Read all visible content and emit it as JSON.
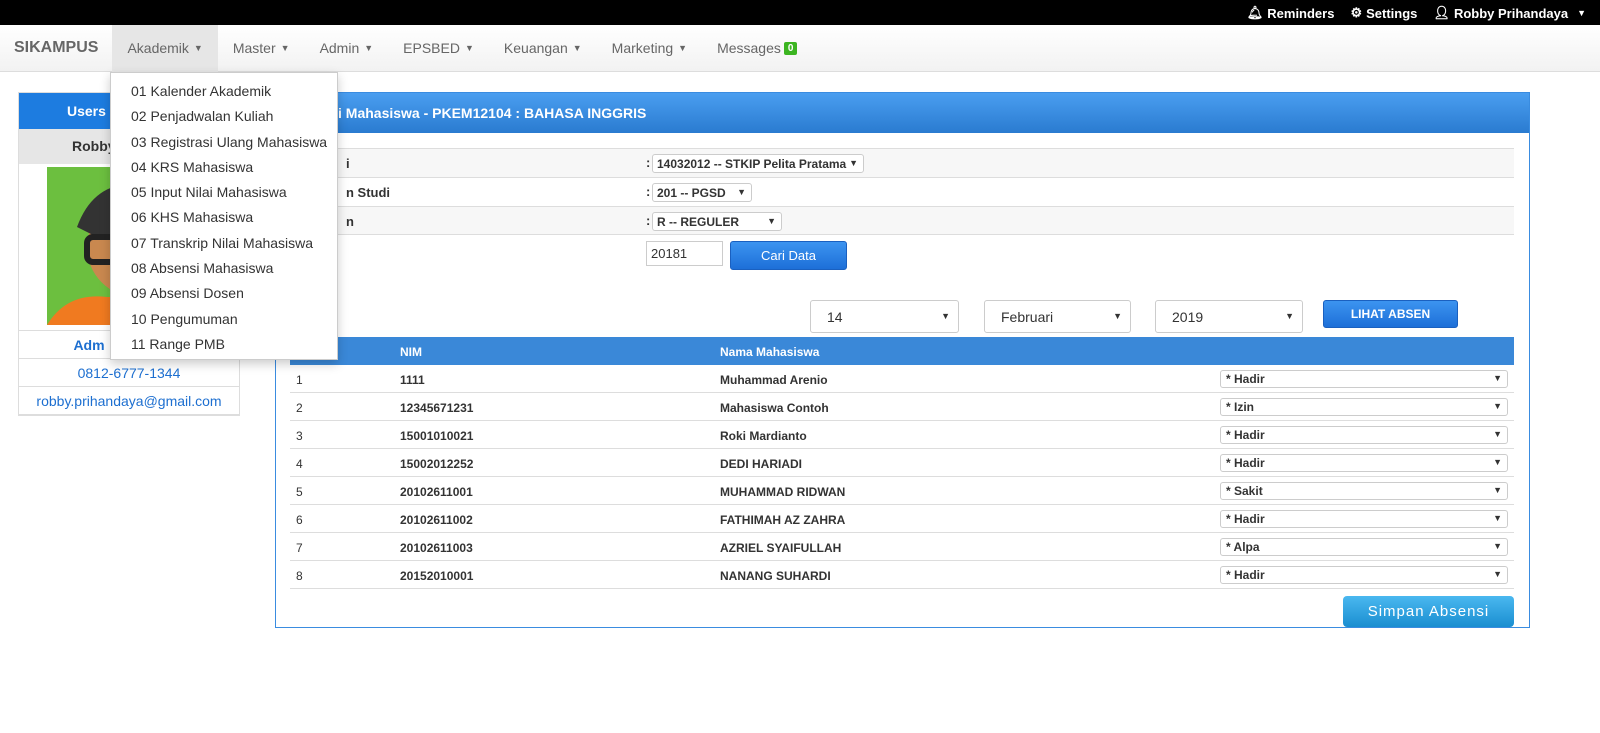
{
  "topbar": {
    "reminders": "Reminders",
    "settings": "Settings",
    "user": "Robby Prihandaya"
  },
  "nav": {
    "brand": "SIKAMPUS",
    "items": [
      "Akademik",
      "Master",
      "Admin",
      "EPSBED",
      "Keuangan",
      "Marketing"
    ],
    "messages": "Messages",
    "messages_count": "0"
  },
  "akademik_menu": [
    "01 Kalender Akademik",
    "02 Penjadwalan Kuliah",
    "03 Registrasi Ulang Mahasiswa",
    "04 KRS Mahasiswa",
    "05 Input Nilai Mahasiswa",
    "06 KHS Mahasiswa",
    "07 Transkrip Nilai Mahasiswa",
    "08 Absensi Mahasiswa",
    "09 Absensi Dosen",
    "10 Pengumuman",
    "11 Range PMB"
  ],
  "sidebar": {
    "header": "Users L",
    "name": "Robby",
    "role": "Adm",
    "phone": "0812-6777-1344",
    "email": "robby.prihandaya@gmail.com"
  },
  "main": {
    "title": "i Mahasiswa - PKEM12104 : BAHASA INGGRIS",
    "form": [
      {
        "label": "i",
        "value": "14032012 -- STKIP Pelita Pratama"
      },
      {
        "label": "n Studi",
        "value": "201 -- PGSD"
      },
      {
        "label": "n",
        "value": "R -- REGULER"
      }
    ],
    "colon": ":",
    "semester": "20181",
    "search_button": "Cari Data",
    "day": "14",
    "month": "Februari",
    "year": "2019",
    "view_button": "LIHAT ABSEN",
    "columns": [
      "",
      "NIM",
      "Nama Mahasiswa"
    ],
    "rows": [
      {
        "no": "1",
        "nim": "1111",
        "nama": "Muhammad Arenio",
        "status": "* Hadir"
      },
      {
        "no": "2",
        "nim": "12345671231",
        "nama": "Mahasiswa Contoh",
        "status": "* Izin"
      },
      {
        "no": "3",
        "nim": "15001010021",
        "nama": "Roki Mardianto",
        "status": "* Hadir"
      },
      {
        "no": "4",
        "nim": "15002012252",
        "nama": "DEDI HARIADI",
        "status": "* Hadir"
      },
      {
        "no": "5",
        "nim": "20102611001",
        "nama": "MUHAMMAD RIDWAN",
        "status": "* Sakit"
      },
      {
        "no": "6",
        "nim": "20102611002",
        "nama": "FATHIMAH AZ ZAHRA",
        "status": "* Hadir"
      },
      {
        "no": "7",
        "nim": "20102611003",
        "nama": "AZRIEL SYAIFULLAH",
        "status": "* Alpa"
      },
      {
        "no": "8",
        "nim": "20152010001",
        "nama": "NANANG SUHARDI",
        "status": "* Hadir"
      }
    ],
    "save_button": "Simpan Absensi"
  }
}
